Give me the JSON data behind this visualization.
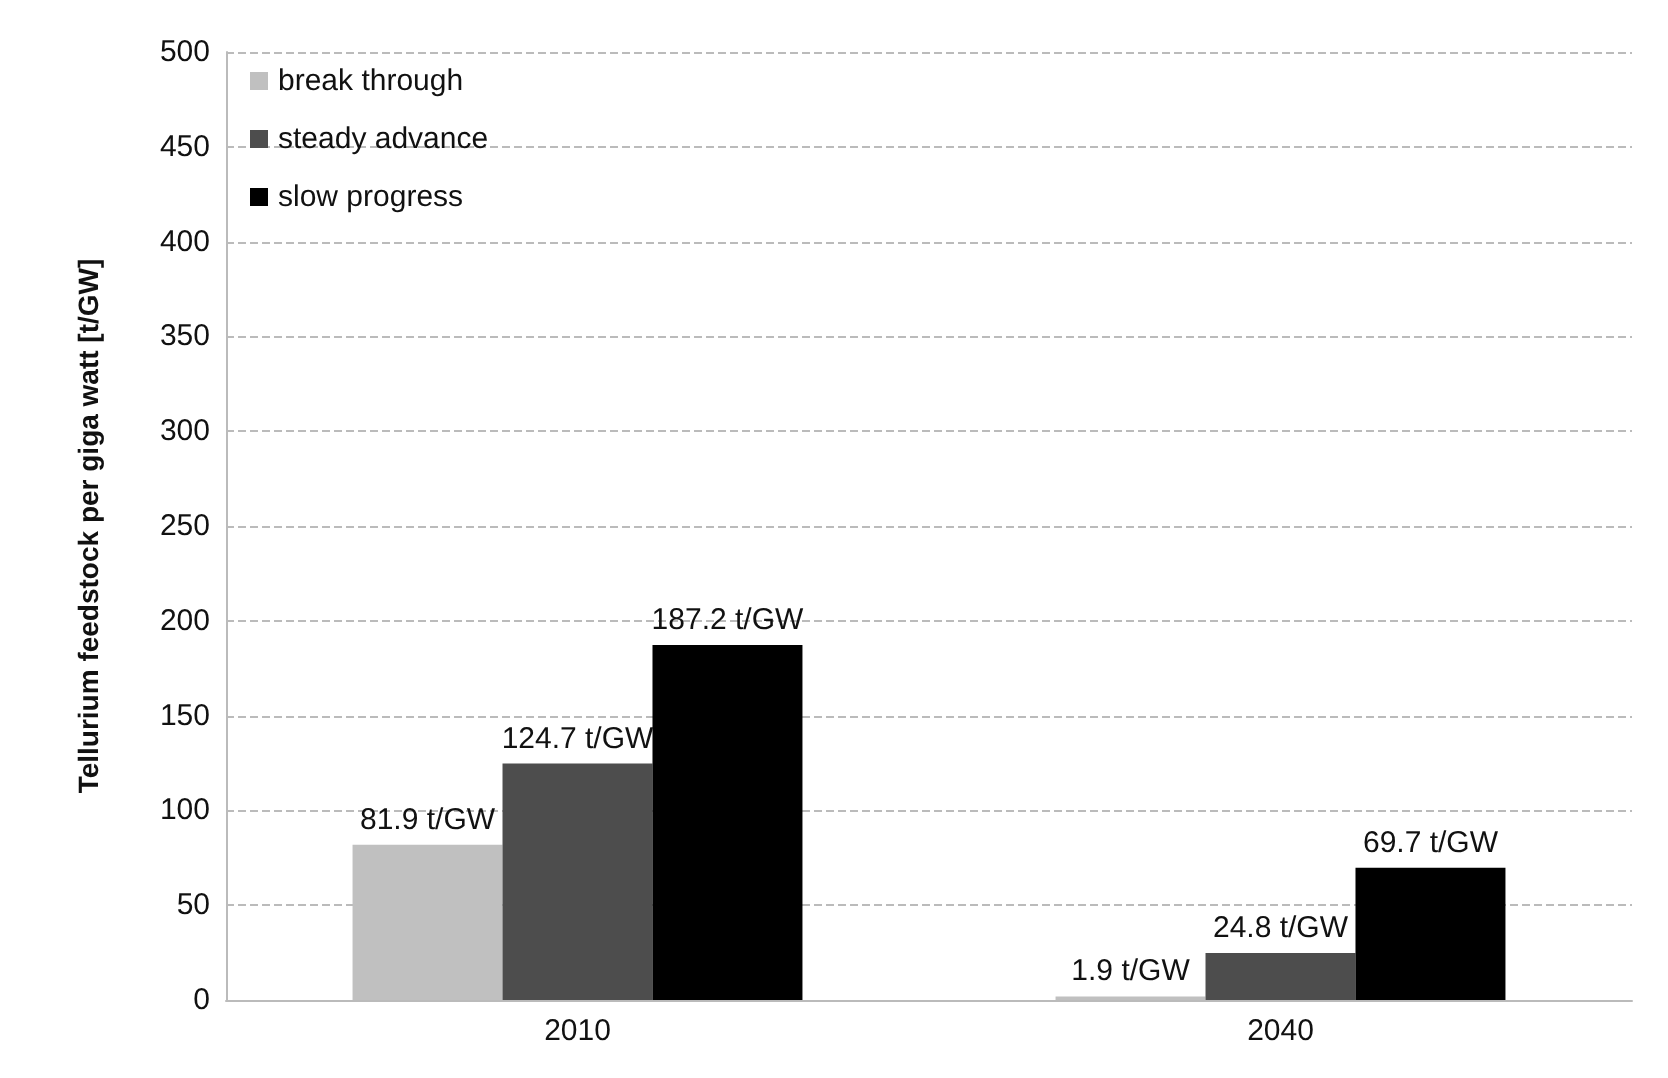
{
  "chart_data": {
    "type": "bar",
    "ylabel": "Tellurium feedstock per giga watt [t/GW]",
    "categories": [
      "2010",
      "2040"
    ],
    "series": [
      {
        "name": "break through",
        "color": "#c0c0c0",
        "values": [
          81.9,
          1.9
        ],
        "value_labels": [
          "81.9 t/GW",
          "1.9 t/GW"
        ]
      },
      {
        "name": "steady advance",
        "color": "#4d4d4d",
        "values": [
          124.7,
          24.8
        ],
        "value_labels": [
          "124.7 t/GW",
          "24.8 t/GW"
        ]
      },
      {
        "name": "slow progress",
        "color": "#000000",
        "values": [
          187.2,
          69.7
        ],
        "value_labels": [
          "187.2 t/GW",
          "69.7 t/GW"
        ]
      }
    ],
    "ylim": [
      0,
      500
    ],
    "yticks": [
      0,
      50,
      100,
      150,
      200,
      250,
      300,
      350,
      400,
      450,
      500
    ],
    "grid": "y",
    "legend": "top left"
  }
}
